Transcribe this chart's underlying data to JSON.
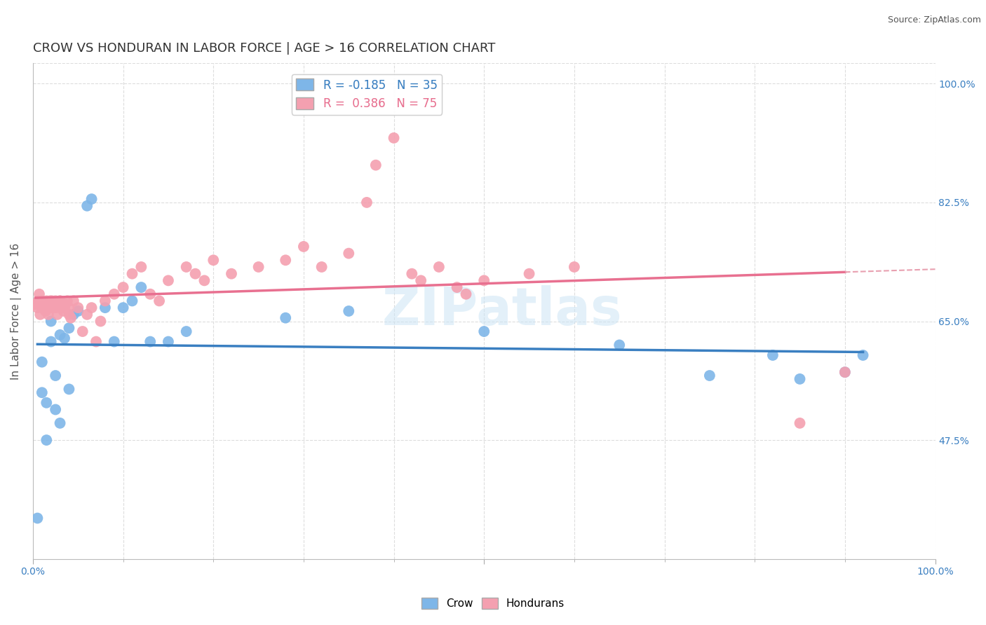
{
  "title": "CROW VS HONDURAN IN LABOR FORCE | AGE > 16 CORRELATION CHART",
  "source_text": "Source: ZipAtlas.com",
  "ylabel": "In Labor Force | Age > 16",
  "xlim": [
    0,
    1
  ],
  "ylim": [
    0.3,
    1.03
  ],
  "yticks": [
    0.475,
    0.65,
    0.825,
    1.0
  ],
  "ytick_labels": [
    "47.5%",
    "65.0%",
    "82.5%",
    "100.0%"
  ],
  "crow_color": "#7eb6e8",
  "honduran_color": "#f4a0b0",
  "crow_line_color": "#3a7fc1",
  "honduran_line_color": "#e87090",
  "honduran_dash_color": "#e8a0b0",
  "crow_R": -0.185,
  "crow_N": 35,
  "honduran_R": 0.386,
  "honduran_N": 75,
  "background_color": "#ffffff",
  "grid_color": "#dddddd",
  "crow_x": [
    0.005,
    0.01,
    0.01,
    0.015,
    0.015,
    0.02,
    0.02,
    0.025,
    0.025,
    0.03,
    0.03,
    0.035,
    0.04,
    0.04,
    0.045,
    0.05,
    0.06,
    0.065,
    0.08,
    0.09,
    0.1,
    0.11,
    0.12,
    0.13,
    0.15,
    0.17,
    0.28,
    0.35,
    0.5,
    0.65,
    0.75,
    0.82,
    0.85,
    0.9,
    0.92
  ],
  "crow_y": [
    0.36,
    0.59,
    0.545,
    0.53,
    0.475,
    0.65,
    0.62,
    0.57,
    0.52,
    0.63,
    0.5,
    0.625,
    0.64,
    0.55,
    0.66,
    0.665,
    0.82,
    0.83,
    0.67,
    0.62,
    0.67,
    0.68,
    0.7,
    0.62,
    0.62,
    0.635,
    0.655,
    0.665,
    0.635,
    0.615,
    0.57,
    0.6,
    0.565,
    0.575,
    0.6
  ],
  "honduran_x": [
    0.003,
    0.005,
    0.006,
    0.007,
    0.008,
    0.009,
    0.01,
    0.01,
    0.012,
    0.013,
    0.014,
    0.015,
    0.015,
    0.016,
    0.017,
    0.018,
    0.019,
    0.02,
    0.02,
    0.021,
    0.022,
    0.023,
    0.025,
    0.025,
    0.026,
    0.027,
    0.028,
    0.03,
    0.03,
    0.032,
    0.034,
    0.035,
    0.036,
    0.038,
    0.04,
    0.04,
    0.042,
    0.045,
    0.05,
    0.055,
    0.06,
    0.065,
    0.07,
    0.075,
    0.08,
    0.09,
    0.1,
    0.11,
    0.12,
    0.13,
    0.14,
    0.15,
    0.17,
    0.18,
    0.19,
    0.2,
    0.22,
    0.25,
    0.28,
    0.3,
    0.32,
    0.35,
    0.37,
    0.38,
    0.4,
    0.42,
    0.43,
    0.45,
    0.47,
    0.48,
    0.5,
    0.55,
    0.6,
    0.85,
    0.9
  ],
  "honduran_y": [
    0.675,
    0.67,
    0.68,
    0.69,
    0.66,
    0.68,
    0.68,
    0.67,
    0.675,
    0.67,
    0.665,
    0.68,
    0.67,
    0.675,
    0.66,
    0.67,
    0.68,
    0.675,
    0.67,
    0.68,
    0.675,
    0.67,
    0.68,
    0.675,
    0.67,
    0.66,
    0.675,
    0.68,
    0.68,
    0.67,
    0.665,
    0.67,
    0.675,
    0.68,
    0.66,
    0.67,
    0.655,
    0.68,
    0.67,
    0.635,
    0.66,
    0.67,
    0.62,
    0.65,
    0.68,
    0.69,
    0.7,
    0.72,
    0.73,
    0.69,
    0.68,
    0.71,
    0.73,
    0.72,
    0.71,
    0.74,
    0.72,
    0.73,
    0.74,
    0.76,
    0.73,
    0.75,
    0.825,
    0.88,
    0.92,
    0.72,
    0.71,
    0.73,
    0.7,
    0.69,
    0.71,
    0.72,
    0.73,
    0.5,
    0.575
  ],
  "title_fontsize": 13,
  "axis_label_fontsize": 11,
  "tick_fontsize": 10,
  "legend_fontsize": 12
}
